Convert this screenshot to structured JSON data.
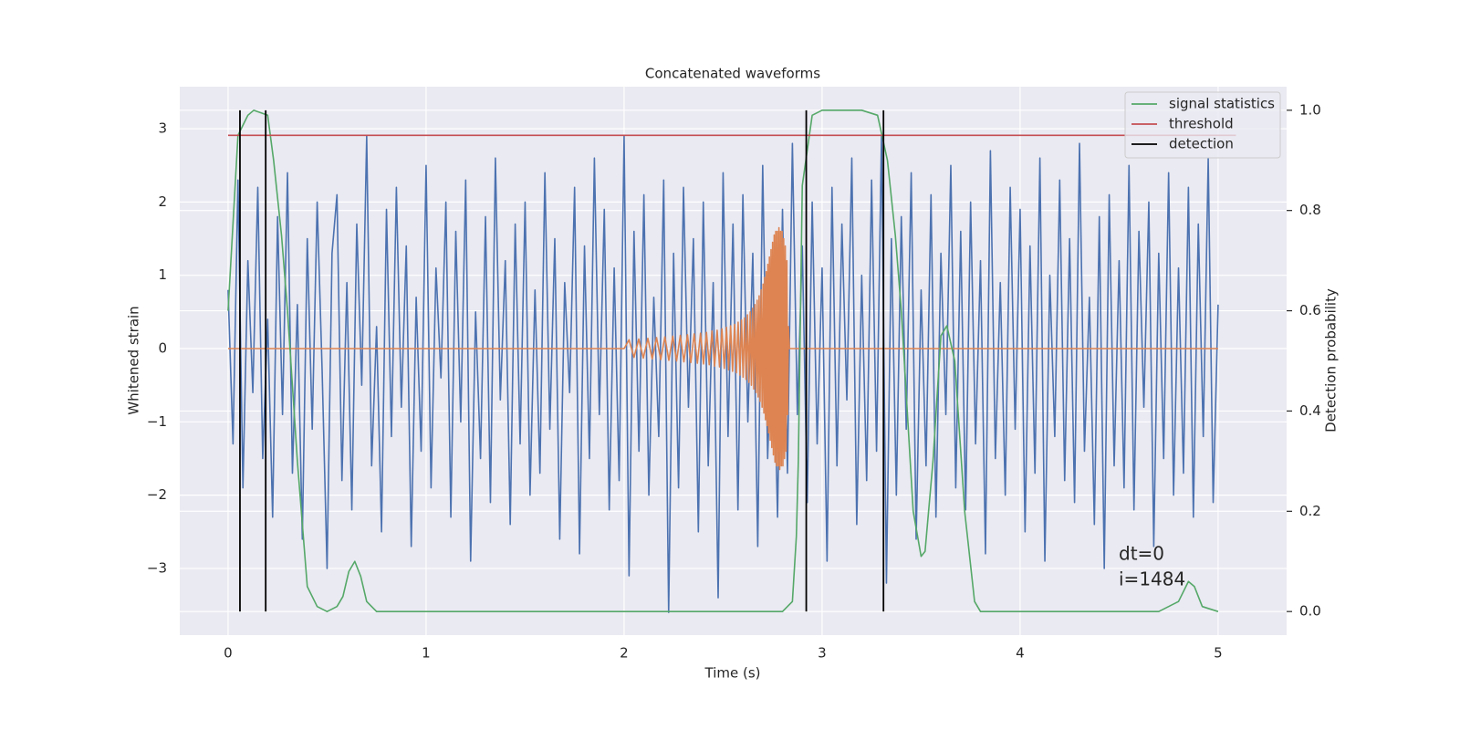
{
  "chart_data": {
    "type": "line",
    "title": "Concatenated waveforms",
    "xlabel": "Time (s)",
    "ylabel": "Whitened strain",
    "y2label": "Detection probability",
    "xlim": [
      -0.244,
      5.346
    ],
    "ylim": [
      -3.91,
      3.574
    ],
    "y2lim": [
      -0.047,
      1.047
    ],
    "xticks": [
      0,
      1,
      2,
      3,
      4,
      5
    ],
    "yticks": [
      {
        "value": -3,
        "label": "−3"
      },
      {
        "value": -2,
        "label": "−2"
      },
      {
        "value": -1,
        "label": "−1"
      },
      0,
      1,
      2,
      3
    ],
    "y2ticks": [
      {
        "value": 0,
        "label": "0.0"
      },
      {
        "value": 0.2,
        "label": "0.2"
      },
      {
        "value": 0.4,
        "label": "0.4"
      },
      {
        "value": 0.6,
        "label": "0.6"
      },
      {
        "value": 0.8,
        "label": "0.8"
      },
      {
        "value": 1,
        "label": "1.0"
      }
    ],
    "grid": true,
    "legend": "upper right",
    "series": [
      {
        "color": "#4c72b0",
        "x": [
          0,
          0.025,
          0.05,
          0.075,
          0.1,
          0.125,
          0.15,
          0.175,
          0.2,
          0.225,
          0.25,
          0.275,
          0.3,
          0.325,
          0.35,
          0.375,
          0.4,
          0.425,
          0.45,
          0.475,
          0.5,
          0.525,
          0.55,
          0.575,
          0.6,
          0.625,
          0.65,
          0.675,
          0.7,
          0.725,
          0.75,
          0.775,
          0.8,
          0.825,
          0.85,
          0.875,
          0.9,
          0.925,
          0.95,
          0.975,
          1,
          1.025,
          1.05,
          1.075,
          1.1,
          1.125,
          1.15,
          1.175,
          1.2,
          1.225,
          1.25,
          1.275,
          1.3,
          1.325,
          1.35,
          1.375,
          1.4,
          1.425,
          1.45,
          1.475,
          1.5,
          1.525,
          1.55,
          1.575,
          1.6,
          1.625,
          1.65,
          1.675,
          1.7,
          1.725,
          1.75,
          1.775,
          1.8,
          1.825,
          1.85,
          1.875,
          1.9,
          1.925,
          1.95,
          1.975,
          2,
          2.025,
          2.05,
          2.075,
          2.1,
          2.125,
          2.15,
          2.175,
          2.2,
          2.225,
          2.25,
          2.275,
          2.3,
          2.325,
          2.35,
          2.375,
          2.4,
          2.425,
          2.45,
          2.475,
          2.5,
          2.525,
          2.55,
          2.575,
          2.6,
          2.625,
          2.65,
          2.675,
          2.7,
          2.725,
          2.75,
          2.775,
          2.8,
          2.825,
          2.85,
          2.875,
          2.9,
          2.925,
          2.95,
          2.975,
          3,
          3.025,
          3.05,
          3.075,
          3.1,
          3.125,
          3.15,
          3.175,
          3.2,
          3.225,
          3.25,
          3.275,
          3.3,
          3.325,
          3.35,
          3.375,
          3.4,
          3.425,
          3.45,
          3.475,
          3.5,
          3.525,
          3.55,
          3.575,
          3.6,
          3.625,
          3.65,
          3.675,
          3.7,
          3.725,
          3.75,
          3.775,
          3.8,
          3.825,
          3.85,
          3.875,
          3.9,
          3.925,
          3.95,
          3.975,
          4,
          4.025,
          4.05,
          4.075,
          4.1,
          4.125,
          4.15,
          4.175,
          4.2,
          4.225,
          4.25,
          4.275,
          4.3,
          4.325,
          4.35,
          4.375,
          4.4,
          4.425,
          4.45,
          4.475,
          4.5,
          4.525,
          4.55,
          4.575,
          4.6,
          4.625,
          4.65,
          4.675,
          4.7,
          4.725,
          4.75,
          4.775,
          4.8,
          4.825,
          4.85,
          4.875,
          4.9,
          4.925,
          4.95,
          4.975,
          5
        ],
        "values": [
          0.8,
          -1.3,
          2.3,
          -1.9,
          1.2,
          -0.6,
          2.2,
          -1.5,
          0.4,
          -2.3,
          1.8,
          -0.9,
          2.4,
          -1.7,
          0.6,
          -2.6,
          1.5,
          -1.1,
          2.0,
          -0.3,
          -3.0,
          1.3,
          2.1,
          -1.8,
          0.9,
          -2.2,
          1.7,
          -0.5,
          2.9,
          -1.6,
          0.3,
          -2.5,
          1.9,
          -1.2,
          2.2,
          -0.8,
          1.4,
          -2.7,
          0.7,
          -1.4,
          2.5,
          -1.9,
          1.1,
          -0.4,
          2.0,
          -2.3,
          1.6,
          -1.0,
          2.3,
          -2.9,
          0.5,
          -1.5,
          1.8,
          -2.1,
          2.6,
          -0.7,
          1.2,
          -2.4,
          1.7,
          -1.3,
          2.0,
          -2.0,
          0.8,
          -1.7,
          2.4,
          -1.1,
          1.5,
          -2.6,
          0.9,
          -0.6,
          2.2,
          -2.8,
          1.4,
          -1.5,
          2.6,
          -0.9,
          1.9,
          -2.2,
          1.1,
          -1.8,
          2.9,
          -3.1,
          1.6,
          -1.4,
          2.1,
          -2.0,
          0.7,
          -1.2,
          2.3,
          -3.6,
          1.3,
          -1.9,
          2.2,
          -0.8,
          1.5,
          -2.5,
          2.0,
          -1.6,
          0.9,
          -3.4,
          2.4,
          -1.2,
          1.7,
          -2.2,
          2.1,
          -1.0,
          1.3,
          -2.7,
          2.5,
          -1.5,
          0.6,
          -2.3,
          1.9,
          -1.7,
          2.8,
          -0.9,
          1.4,
          -2.1,
          2.0,
          -1.3,
          1.1,
          -2.9,
          2.2,
          -1.6,
          1.7,
          -0.7,
          2.6,
          -2.4,
          1.0,
          -1.8,
          2.3,
          -1.4,
          2.9,
          -3.2,
          1.5,
          -2.0,
          1.8,
          -1.1,
          2.4,
          -2.6,
          0.8,
          -1.6,
          2.1,
          -2.3,
          1.3,
          -0.9,
          2.5,
          -1.9,
          1.6,
          -2.2,
          2.0,
          -1.3,
          1.2,
          -2.8,
          2.7,
          -1.5,
          0.9,
          -2.0,
          2.2,
          -1.1,
          1.9,
          -2.5,
          1.4,
          -1.7,
          2.6,
          -2.9,
          1.0,
          -1.2,
          2.3,
          -1.8,
          1.5,
          -2.1,
          2.8,
          -1.4,
          0.7,
          -2.4,
          1.8,
          -3.0,
          2.1,
          -1.6,
          1.2,
          -1.9,
          2.5,
          -2.2,
          1.6,
          -0.8,
          2.0,
          -2.7,
          1.3,
          -1.5,
          2.4,
          -2.0,
          1.1,
          -1.7,
          2.2,
          -2.3,
          1.7,
          -1.2,
          2.6,
          -2.1,
          0.6
        ]
      },
      {
        "color": "#dd8452",
        "x": [
          0,
          2.0,
          2.025,
          2.05,
          2.074,
          2.097,
          2.12,
          2.142,
          2.164,
          2.185,
          2.206,
          2.226,
          2.246,
          2.265,
          2.284,
          2.302,
          2.32,
          2.337,
          2.354,
          2.37,
          2.386,
          2.401,
          2.416,
          2.43,
          2.444,
          2.457,
          2.47,
          2.482,
          2.494,
          2.506,
          2.517,
          2.528,
          2.538,
          2.548,
          2.558,
          2.567,
          2.576,
          2.585,
          2.593,
          2.601,
          2.609,
          2.616,
          2.623,
          2.63,
          2.637,
          2.643,
          2.649,
          2.655,
          2.661,
          2.667,
          2.672,
          2.677,
          2.682,
          2.687,
          2.692,
          2.697,
          2.702,
          2.706,
          2.71,
          2.714,
          2.718,
          2.722,
          2.726,
          2.73,
          2.734,
          2.738,
          2.742,
          2.746,
          2.75,
          2.754,
          2.758,
          2.762,
          2.766,
          2.77,
          2.774,
          2.778,
          2.782,
          2.786,
          2.79,
          2.794,
          2.798,
          2.802,
          2.806,
          2.81,
          2.814,
          2.818,
          2.822,
          2.826,
          2.83,
          2.835,
          5
        ],
        "values": [
          0,
          0,
          0.12,
          -0.12,
          0.13,
          -0.13,
          0.14,
          -0.14,
          0.15,
          -0.15,
          0.16,
          -0.16,
          0.17,
          -0.17,
          0.18,
          -0.18,
          0.19,
          -0.19,
          0.2,
          -0.2,
          0.21,
          -0.21,
          0.22,
          -0.22,
          0.24,
          -0.24,
          0.25,
          -0.25,
          0.27,
          -0.27,
          0.29,
          -0.29,
          0.31,
          -0.31,
          0.33,
          -0.33,
          0.36,
          -0.36,
          0.39,
          -0.39,
          0.42,
          -0.42,
          0.46,
          -0.46,
          0.5,
          -0.5,
          0.55,
          -0.55,
          0.6,
          -0.6,
          0.66,
          -0.66,
          0.72,
          -0.72,
          0.8,
          -0.8,
          0.88,
          -0.88,
          0.97,
          -0.97,
          1.05,
          -1.05,
          1.15,
          -1.15,
          1.25,
          -1.25,
          1.35,
          -1.35,
          1.45,
          -1.45,
          1.55,
          -1.55,
          1.6,
          -1.6,
          1.6,
          -1.6,
          1.65,
          -1.65,
          1.6,
          -1.6,
          1.6,
          -1.6,
          1.5,
          -1.5,
          1.4,
          -1.4,
          1.2,
          -0.9,
          0.3,
          0,
          0
        ]
      },
      {
        "name": "signal statistics",
        "color": "#55a868",
        "axis": "y2",
        "x": [
          0,
          0.05,
          0.1,
          0.13,
          0.2,
          0.23,
          0.27,
          0.3,
          0.35,
          0.4,
          0.45,
          0.5,
          0.55,
          0.58,
          0.61,
          0.64,
          0.67,
          0.7,
          0.75,
          1.5,
          2.8,
          2.85,
          2.87,
          2.88,
          2.9,
          2.95,
          3.0,
          3.2,
          3.28,
          3.33,
          3.37,
          3.4,
          3.46,
          3.5,
          3.52,
          3.56,
          3.6,
          3.63,
          3.67,
          3.72,
          3.77,
          3.8,
          4.7,
          4.8,
          4.85,
          4.88,
          4.92,
          5.0
        ],
        "values": [
          0.6,
          0.95,
          0.99,
          1.0,
          0.99,
          0.9,
          0.75,
          0.6,
          0.3,
          0.05,
          0.01,
          0.0,
          0.01,
          0.03,
          0.08,
          0.1,
          0.07,
          0.02,
          0.0,
          0.0,
          0.0,
          0.02,
          0.15,
          0.3,
          0.85,
          0.99,
          1.0,
          1.0,
          0.99,
          0.9,
          0.75,
          0.6,
          0.2,
          0.11,
          0.12,
          0.3,
          0.55,
          0.57,
          0.5,
          0.2,
          0.02,
          0.0,
          0.0,
          0.02,
          0.06,
          0.05,
          0.01,
          0.0
        ]
      },
      {
        "name": "threshold",
        "color": "#c44e52",
        "axis": "y2",
        "x": [
          0,
          5.09
        ],
        "values": [
          0.95,
          0.95
        ]
      }
    ],
    "detection": {
      "name": "detection",
      "color": "#000000",
      "x": [
        0.06,
        0.19,
        2.92,
        3.31
      ],
      "ymin": 0,
      "ymax": 1
    },
    "annotations": [
      "dt=0",
      "i=1484"
    ]
  }
}
